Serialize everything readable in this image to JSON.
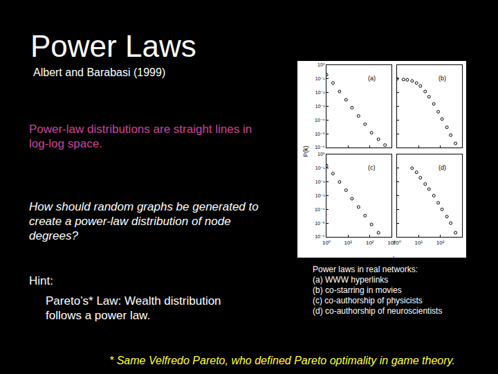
{
  "slide": {
    "title": "Power Laws",
    "subtitle": "Albert and Barabasi (1999)",
    "statement": "Power-law distributions are straight lines in log-log space.",
    "question": "How should random graphs be generated to create a power-law distribution of node degrees?",
    "hint_label": "Hint:",
    "hint": "Pareto’s* Law: Wealth distribution follows a power law.",
    "caption": [
      "Power laws in real networks:",
      "(a) WWW hyperlinks",
      "(b) co-starring in movies",
      "(c) co-authorship of physicists",
      "(d) co-authorship of neuroscientists"
    ],
    "footnote": "* Same Velfredo Pareto, who defined Pareto optimality in game theory.",
    "figure_x_label": "k",
    "figure_y_label": "P(k)"
  },
  "chart_data": [
    {
      "type": "scatter",
      "annotations": [
        "(a)"
      ],
      "color": "#000000",
      "marker": "circle-open",
      "log": true,
      "grid": false,
      "tick_labels": "y",
      "x": [
        1,
        2,
        4,
        8,
        15,
        30,
        60,
        120,
        250,
        500
      ],
      "values": [
        0.2,
        0.05,
        0.012,
        0.003,
        0.0008,
        0.0002,
        5e-05,
        1.2e-05,
        4e-06,
        1.5e-06
      ],
      "xlim": [
        1,
        1000
      ],
      "ylim": [
        1e-06,
        1
      ],
      "xticks": [
        {
          "value": 1,
          "label": "10⁰"
        },
        {
          "value": 10,
          "label": "10¹"
        },
        {
          "value": 100,
          "label": "10²"
        },
        {
          "value": 1000,
          "label": "10³"
        }
      ],
      "yticks": [
        {
          "value": 1,
          "label": "10⁰"
        },
        {
          "value": 0.1,
          "label": "10⁻¹"
        },
        {
          "value": 0.01,
          "label": "10⁻²"
        },
        {
          "value": 0.001,
          "label": "10⁻³"
        },
        {
          "value": 0.0001,
          "label": "10⁻⁴"
        },
        {
          "value": 1e-05,
          "label": "10⁻⁵"
        },
        {
          "value": 1e-06,
          "label": "10⁻⁶"
        }
      ]
    },
    {
      "type": "scatter",
      "annotations": [
        "(b)"
      ],
      "color": "#000000",
      "marker": "circle-open",
      "log": true,
      "grid": false,
      "tick_labels": false,
      "x": [
        1,
        2,
        3,
        5,
        8,
        12,
        20,
        30,
        50,
        80,
        120,
        200,
        300,
        500
      ],
      "values": [
        0.1,
        0.09,
        0.085,
        0.07,
        0.05,
        0.03,
        0.012,
        0.005,
        0.0015,
        0.0004,
        0.00012,
        3e-05,
        8e-06,
        2e-06
      ],
      "xlim": [
        1,
        1000
      ],
      "ylim": [
        1e-06,
        1
      ],
      "xticks": [
        {
          "value": 1,
          "label": "10⁰"
        },
        {
          "value": 10,
          "label": "10¹"
        },
        {
          "value": 100,
          "label": "10²"
        },
        {
          "value": 1000,
          "label": "10³"
        }
      ],
      "yticks": [
        {
          "value": 1,
          "label": "10⁰"
        },
        {
          "value": 0.1,
          "label": "10⁻¹"
        },
        {
          "value": 0.01,
          "label": "10⁻²"
        },
        {
          "value": 0.001,
          "label": "10⁻³"
        },
        {
          "value": 0.0001,
          "label": "10⁻⁴"
        },
        {
          "value": 1e-05,
          "label": "10⁻⁵"
        },
        {
          "value": 1e-06,
          "label": "10⁻⁶"
        }
      ]
    },
    {
      "type": "scatter",
      "annotations": [
        "(c)"
      ],
      "color": "#000000",
      "marker": "circle-open",
      "log": true,
      "grid": false,
      "tick_labels": true,
      "x": [
        1,
        2,
        4,
        8,
        15,
        30,
        60,
        120,
        250
      ],
      "values": [
        0.15,
        0.04,
        0.01,
        0.0025,
        0.0006,
        0.00015,
        3.5e-05,
        8e-06,
        2e-06
      ],
      "xlim": [
        1,
        1000
      ],
      "ylim": [
        1e-06,
        1
      ],
      "xticks": [
        {
          "value": 1,
          "label": "10⁰"
        },
        {
          "value": 10,
          "label": "10¹"
        },
        {
          "value": 100,
          "label": "10²"
        },
        {
          "value": 1000,
          "label": "10³"
        }
      ],
      "yticks": [
        {
          "value": 1,
          "label": "10⁰"
        },
        {
          "value": 0.1,
          "label": "10⁻¹"
        },
        {
          "value": 0.01,
          "label": "10⁻²"
        },
        {
          "value": 0.001,
          "label": "10⁻³"
        },
        {
          "value": 0.0001,
          "label": "10⁻⁴"
        },
        {
          "value": 1e-05,
          "label": "10⁻⁵"
        },
        {
          "value": 1e-06,
          "label": "10⁻⁶"
        }
      ]
    },
    {
      "type": "scatter",
      "annotations": [
        "(d)"
      ],
      "color": "#000000",
      "marker": "circle-open",
      "log": true,
      "grid": false,
      "tick_labels": "x",
      "x": [
        5,
        8,
        12,
        20,
        30,
        50,
        80,
        120,
        200,
        300,
        500
      ],
      "values": [
        0.1,
        0.05,
        0.02,
        0.007,
        0.003,
        0.001,
        0.0003,
        0.0001,
        3e-05,
        1e-05,
        2e-06
      ],
      "xlim": [
        1,
        1000
      ],
      "ylim": [
        1e-06,
        1
      ],
      "xticks": [
        {
          "value": 1,
          "label": "10⁰"
        },
        {
          "value": 10,
          "label": "10¹"
        },
        {
          "value": 100,
          "label": "10²"
        },
        {
          "value": 1000,
          "label": "10³"
        }
      ],
      "yticks": [
        {
          "value": 1,
          "label": "10⁰"
        },
        {
          "value": 0.1,
          "label": "10⁻¹"
        },
        {
          "value": 0.01,
          "label": "10⁻²"
        },
        {
          "value": 0.001,
          "label": "10⁻³"
        },
        {
          "value": 0.0001,
          "label": "10⁻⁴"
        },
        {
          "value": 1e-05,
          "label": "10⁻⁵"
        },
        {
          "value": 1e-06,
          "label": "10⁻⁶"
        }
      ]
    }
  ]
}
